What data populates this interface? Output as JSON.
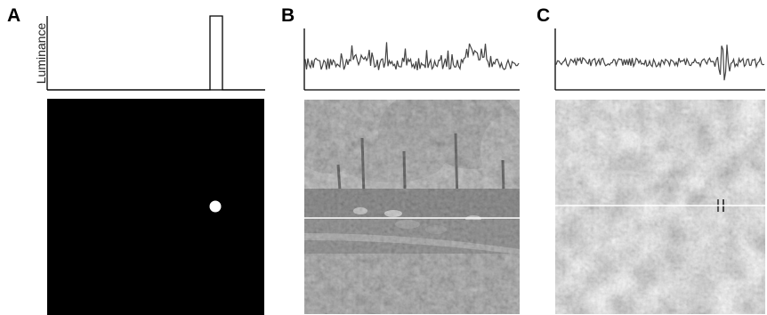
{
  "panels": [
    {
      "letter": "A",
      "trace_label": "Luminance",
      "image": "black-square-with-white-dot",
      "trace": "single-pulse"
    },
    {
      "letter": "B",
      "image": "natural-scene-park-trees",
      "trace": "noisy-luminance-profile"
    },
    {
      "letter": "C",
      "image": "pink-noise-with-embedded-grating",
      "trace": "noisy-profile-with-oscillation"
    }
  ],
  "colors": {
    "trace": "#444444",
    "axis": "#000000",
    "scanline": "#ffffff",
    "dot": "#ffffff"
  }
}
